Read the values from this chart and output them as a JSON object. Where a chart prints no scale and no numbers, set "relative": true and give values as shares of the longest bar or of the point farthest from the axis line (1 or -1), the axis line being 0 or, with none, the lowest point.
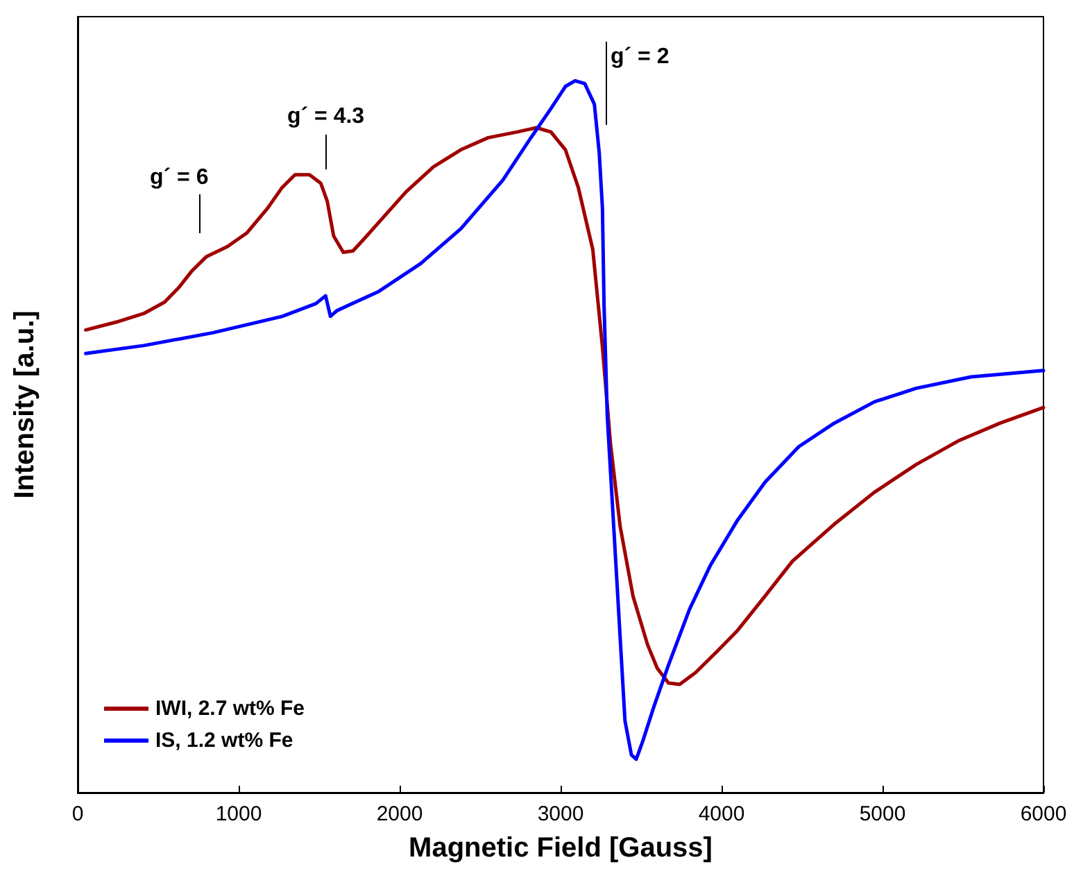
{
  "chart_data": {
    "type": "line",
    "xlabel": "Magnetic Field [Gauss]",
    "ylabel": "Intensity [a.u.]",
    "relative": true,
    "xlim": [
      0,
      6000
    ],
    "xticks": [
      0,
      1000,
      2000,
      3000,
      4000,
      5000,
      6000
    ],
    "grid": false,
    "legend": "bottom left",
    "marker": "none",
    "line_style": "solid",
    "annotations": [
      "g´ = 6",
      "g´ = 4.3",
      "g´ = 2"
    ],
    "series": [
      {
        "name": "IWI, 2.7 wt% Fe",
        "color": "#a00000",
        "x": [
          50,
          240,
          410,
          540,
          630,
          710,
          800,
          930,
          1050,
          1180,
          1270,
          1350,
          1440,
          1510,
          1550,
          1590,
          1650,
          1710,
          1780,
          1910,
          2040,
          2210,
          2380,
          2550,
          2730,
          2850,
          2940,
          3030,
          3110,
          3200,
          3260,
          3310,
          3370,
          3450,
          3540,
          3600,
          3670,
          3740,
          3840,
          3970,
          4100,
          4270,
          4440,
          4700,
          4950,
          5210,
          5470,
          5730,
          6000
        ],
        "values": [
          0.65,
          0.661,
          0.673,
          0.689,
          0.71,
          0.733,
          0.753,
          0.767,
          0.786,
          0.821,
          0.85,
          0.868,
          0.868,
          0.856,
          0.831,
          0.782,
          0.759,
          0.761,
          0.778,
          0.811,
          0.844,
          0.879,
          0.903,
          0.92,
          0.928,
          0.934,
          0.928,
          0.903,
          0.85,
          0.763,
          0.626,
          0.49,
          0.374,
          0.276,
          0.208,
          0.175,
          0.154,
          0.152,
          0.169,
          0.198,
          0.228,
          0.276,
          0.325,
          0.377,
          0.422,
          0.461,
          0.494,
          0.519,
          0.541
        ]
      },
      {
        "name": "IS, 1.2 wt% Fe",
        "color": "#0000ff",
        "x": [
          50,
          410,
          840,
          1270,
          1480,
          1540,
          1570,
          1610,
          1870,
          2130,
          2380,
          2640,
          2810,
          2940,
          3030,
          3090,
          3150,
          3210,
          3240,
          3260,
          3270,
          3290,
          3330,
          3370,
          3400,
          3440,
          3470,
          3510,
          3580,
          3670,
          3800,
          3930,
          4100,
          4270,
          4480,
          4700,
          4950,
          5210,
          5550,
          6000
        ],
        "values": [
          0.617,
          0.628,
          0.646,
          0.669,
          0.687,
          0.698,
          0.669,
          0.677,
          0.704,
          0.743,
          0.792,
          0.86,
          0.918,
          0.961,
          0.992,
          1,
          0.996,
          0.967,
          0.899,
          0.821,
          0.685,
          0.529,
          0.374,
          0.218,
          0.101,
          0.053,
          0.047,
          0.072,
          0.121,
          0.179,
          0.257,
          0.319,
          0.383,
          0.436,
          0.486,
          0.519,
          0.549,
          0.568,
          0.584,
          0.593
        ]
      }
    ]
  }
}
